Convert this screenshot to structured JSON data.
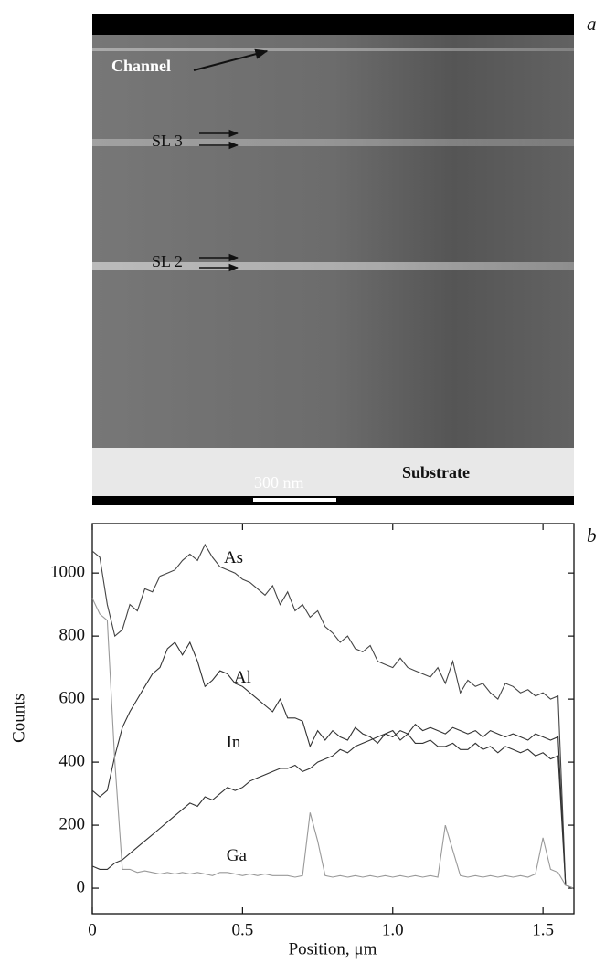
{
  "image_panel": {
    "panel_label": "a",
    "labels": [
      "Channel",
      "SL 3",
      "SL 2",
      "Substrate"
    ],
    "scale_bar": "300 nm"
  },
  "chart_data": {
    "type": "line",
    "panel_label": "b",
    "x_label": "Position, μm",
    "y_label": "Counts",
    "x": [
      0,
      0.025,
      0.05,
      0.075,
      0.1,
      0.125,
      0.15,
      0.175,
      0.2,
      0.225,
      0.25,
      0.275,
      0.3,
      0.325,
      0.35,
      0.375,
      0.4,
      0.425,
      0.45,
      0.475,
      0.5,
      0.525,
      0.55,
      0.575,
      0.6,
      0.625,
      0.65,
      0.675,
      0.7,
      0.725,
      0.75,
      0.775,
      0.8,
      0.825,
      0.85,
      0.875,
      0.9,
      0.925,
      0.95,
      0.975,
      1,
      1.025,
      1.05,
      1.075,
      1.1,
      1.125,
      1.15,
      1.175,
      1.2,
      1.225,
      1.25,
      1.275,
      1.3,
      1.325,
      1.35,
      1.375,
      1.4,
      1.425,
      1.45,
      1.475,
      1.5,
      1.525,
      1.55,
      1.575,
      1.6
    ],
    "series": [
      {
        "name": "As",
        "color": "#444444",
        "values": [
          1070,
          1050,
          900,
          800,
          820,
          900,
          880,
          950,
          940,
          990,
          1000,
          1010,
          1040,
          1060,
          1040,
          1090,
          1050,
          1020,
          1010,
          1000,
          980,
          970,
          950,
          930,
          960,
          900,
          940,
          880,
          900,
          860,
          880,
          830,
          810,
          780,
          800,
          760,
          750,
          770,
          720,
          710,
          700,
          730,
          700,
          690,
          680,
          670,
          700,
          650,
          720,
          620,
          660,
          640,
          650,
          620,
          600,
          650,
          640,
          620,
          630,
          610,
          620,
          600,
          610,
          10,
          0
        ]
      },
      {
        "name": "Al",
        "color": "#333333",
        "values": [
          310,
          290,
          310,
          420,
          510,
          560,
          600,
          640,
          680,
          700,
          760,
          780,
          740,
          780,
          720,
          640,
          660,
          690,
          680,
          650,
          640,
          620,
          600,
          580,
          560,
          600,
          540,
          540,
          530,
          450,
          500,
          470,
          500,
          480,
          470,
          510,
          490,
          480,
          460,
          490,
          500,
          470,
          490,
          460,
          460,
          470,
          450,
          450,
          460,
          440,
          440,
          460,
          440,
          450,
          430,
          450,
          440,
          430,
          440,
          420,
          430,
          410,
          420,
          10,
          0
        ]
      },
      {
        "name": "In",
        "color": "#333333",
        "values": [
          70,
          60,
          60,
          80,
          90,
          110,
          130,
          150,
          170,
          190,
          210,
          230,
          250,
          270,
          260,
          290,
          280,
          300,
          320,
          310,
          320,
          340,
          350,
          360,
          370,
          380,
          380,
          390,
          370,
          380,
          400,
          410,
          420,
          440,
          430,
          450,
          460,
          470,
          480,
          490,
          480,
          500,
          490,
          520,
          500,
          510,
          500,
          490,
          510,
          500,
          490,
          500,
          480,
          500,
          490,
          480,
          490,
          480,
          470,
          490,
          480,
          470,
          480,
          10,
          0
        ]
      },
      {
        "name": "Ga",
        "color": "#999999",
        "values": [
          920,
          870,
          850,
          400,
          60,
          60,
          50,
          55,
          50,
          45,
          50,
          45,
          50,
          45,
          50,
          45,
          40,
          50,
          50,
          45,
          40,
          45,
          40,
          45,
          40,
          40,
          40,
          35,
          40,
          240,
          150,
          40,
          35,
          40,
          35,
          40,
          35,
          40,
          35,
          40,
          35,
          40,
          35,
          40,
          35,
          40,
          35,
          200,
          120,
          40,
          35,
          40,
          35,
          40,
          35,
          40,
          35,
          40,
          35,
          45,
          160,
          60,
          50,
          10,
          0
        ]
      }
    ],
    "xlim": [
      0,
      1.603
    ],
    "ylim": [
      -81,
      1157
    ],
    "xticks": [
      0,
      0.5,
      {
        "value": 1,
        "label": "1.0"
      },
      1.5
    ],
    "yticks": [
      0,
      200,
      400,
      600,
      800,
      1000
    ]
  }
}
